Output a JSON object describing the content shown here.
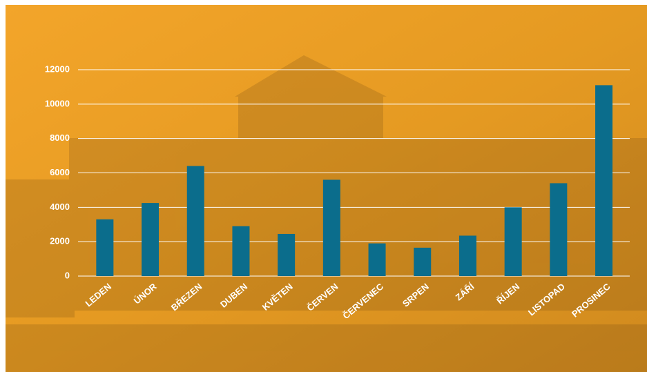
{
  "chart_data": {
    "type": "bar",
    "categories": [
      "LEDEN",
      "ÚNOR",
      "BŘEZEN",
      "DUBEN",
      "KVĚTEN",
      "ČERVEN",
      "ČERVENEC",
      "SRPEN",
      "ZÁŘÍ",
      "ŘÍJEN",
      "LISTOPAD",
      "PROSINEC"
    ],
    "values": [
      3300,
      4250,
      6400,
      2900,
      2450,
      5600,
      1900,
      1650,
      2350,
      4000,
      5400,
      11100
    ],
    "color": "#0b6d8c",
    "ylim": [
      0,
      12000
    ],
    "yticks": [
      0,
      2000,
      4000,
      6000,
      8000,
      10000,
      12000
    ],
    "grid": true
  }
}
